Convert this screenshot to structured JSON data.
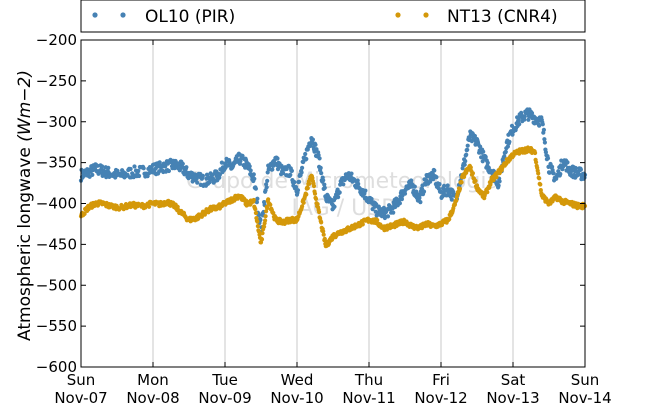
{
  "chart_data": {
    "type": "scatter",
    "title": "",
    "xlabel": "",
    "ylabel": "Atmospheric longwave",
    "ylabel_unit": "(Wm−2)",
    "ylim": [
      -600,
      -200
    ],
    "yticks": [
      -200,
      -250,
      -300,
      -350,
      -400,
      -450,
      -500,
      -550,
      -600
    ],
    "ytick_labels": [
      "−200",
      "−250",
      "−300",
      "−350",
      "−400",
      "−450",
      "−500",
      "−550",
      "−600"
    ],
    "xlim": [
      0,
      7
    ],
    "xticks": [
      {
        "pos": 0,
        "day": "Sun",
        "date": "Nov-07"
      },
      {
        "pos": 1,
        "day": "Mon",
        "date": "Nov-08"
      },
      {
        "pos": 2,
        "day": "Tue",
        "date": "Nov-09"
      },
      {
        "pos": 3,
        "day": "Wed",
        "date": "Nov-10"
      },
      {
        "pos": 4,
        "day": "Thu",
        "date": "Nov-11"
      },
      {
        "pos": 5,
        "day": "Fri",
        "date": "Nov-12"
      },
      {
        "pos": 6,
        "day": "Sat",
        "date": "Nov-13"
      },
      {
        "pos": 7,
        "day": "Sun",
        "date": "Nov-14"
      }
    ],
    "grid": true,
    "legend_placement": "top (above plot)",
    "watermark": [
      "Grupo de Micrometeorologia",
      "IAG / USP"
    ],
    "series": [
      {
        "name": "OL10 (PIR)",
        "color": "#4682b4",
        "x": [
          0.0,
          0.1,
          0.2,
          0.3,
          0.4,
          0.55,
          0.7,
          0.85,
          1.0,
          1.1,
          1.2,
          1.3,
          1.4,
          1.5,
          1.6,
          1.7,
          1.8,
          1.9,
          2.0,
          2.1,
          2.2,
          2.3,
          2.4,
          2.5,
          2.6,
          2.7,
          2.8,
          2.9,
          3.0,
          3.1,
          3.2,
          3.3,
          3.4,
          3.5,
          3.6,
          3.7,
          3.8,
          3.9,
          4.0,
          4.1,
          4.2,
          4.3,
          4.4,
          4.5,
          4.6,
          4.7,
          4.8,
          4.9,
          5.0,
          5.1,
          5.2,
          5.3,
          5.4,
          5.5,
          5.6,
          5.7,
          5.8,
          5.9,
          6.0,
          6.1,
          6.2,
          6.3,
          6.4,
          6.5,
          6.6,
          6.7,
          6.8,
          6.9,
          7.0
        ],
        "y": [
          -365,
          -362,
          -358,
          -360,
          -363,
          -366,
          -362,
          -361,
          -358,
          -356,
          -354,
          -353,
          -356,
          -365,
          -368,
          -372,
          -370,
          -366,
          -350,
          -356,
          -345,
          -352,
          -370,
          -430,
          -360,
          -346,
          -362,
          -360,
          -383,
          -348,
          -318,
          -345,
          -392,
          -405,
          -378,
          -365,
          -373,
          -383,
          -395,
          -408,
          -412,
          -408,
          -398,
          -382,
          -378,
          -395,
          -370,
          -365,
          -388,
          -382,
          -395,
          -360,
          -318,
          -325,
          -346,
          -360,
          -375,
          -330,
          -308,
          -296,
          -290,
          -295,
          -300,
          -355,
          -370,
          -348,
          -360,
          -363,
          -365
        ]
      },
      {
        "name": "NT13 (CNR4)",
        "color": "#d4980a",
        "x": [
          0.0,
          0.1,
          0.2,
          0.3,
          0.4,
          0.55,
          0.7,
          0.85,
          1.0,
          1.1,
          1.2,
          1.3,
          1.4,
          1.5,
          1.6,
          1.7,
          1.8,
          1.9,
          2.0,
          2.1,
          2.2,
          2.3,
          2.4,
          2.5,
          2.6,
          2.7,
          2.8,
          2.9,
          3.0,
          3.1,
          3.2,
          3.3,
          3.4,
          3.5,
          3.6,
          3.7,
          3.8,
          3.9,
          4.0,
          4.1,
          4.2,
          4.3,
          4.4,
          4.5,
          4.6,
          4.7,
          4.8,
          4.9,
          5.0,
          5.1,
          5.2,
          5.3,
          5.4,
          5.5,
          5.6,
          5.7,
          5.8,
          5.9,
          6.0,
          6.1,
          6.2,
          6.3,
          6.4,
          6.5,
          6.6,
          6.7,
          6.8,
          6.9,
          7.0
        ],
        "y": [
          -415,
          -405,
          -400,
          -400,
          -403,
          -405,
          -402,
          -403,
          -400,
          -401,
          -398,
          -403,
          -412,
          -420,
          -418,
          -412,
          -407,
          -405,
          -400,
          -395,
          -390,
          -400,
          -398,
          -450,
          -395,
          -420,
          -423,
          -420,
          -420,
          -395,
          -365,
          -410,
          -452,
          -440,
          -435,
          -432,
          -428,
          -424,
          -420,
          -422,
          -430,
          -428,
          -425,
          -422,
          -428,
          -430,
          -425,
          -428,
          -425,
          -420,
          -400,
          -368,
          -355,
          -380,
          -392,
          -372,
          -362,
          -350,
          -340,
          -336,
          -334,
          -336,
          -390,
          -400,
          -392,
          -398,
          -400,
          -403,
          -403
        ]
      }
    ]
  }
}
